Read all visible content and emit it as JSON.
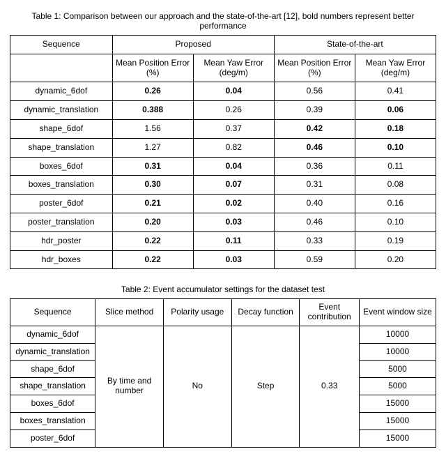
{
  "table1": {
    "caption": "Table 1: Comparison between our approach and the state-of-the-art [12], bold numbers represent better performance",
    "headers": {
      "sequence": "Sequence",
      "proposed": "Proposed",
      "sota": "State-of-the-art",
      "mpe": "Mean Position Error (%)",
      "mye": "Mean Yaw Error (deg/m)",
      "mpe2": "Mean Position Error (%)",
      "mye2": "Mean Yaw Error (deg/m)"
    },
    "rows": [
      {
        "seq": "dynamic_6dof",
        "p_pos": "0.26",
        "p_pos_b": true,
        "p_yaw": "0.04",
        "p_yaw_b": true,
        "s_pos": "0.56",
        "s_pos_b": false,
        "s_yaw": "0.41",
        "s_yaw_b": false
      },
      {
        "seq": "dynamic_translation",
        "p_pos": "0.388",
        "p_pos_b": true,
        "p_yaw": "0.26",
        "p_yaw_b": false,
        "s_pos": "0.39",
        "s_pos_b": false,
        "s_yaw": "0.06",
        "s_yaw_b": true
      },
      {
        "seq": "shape_6dof",
        "p_pos": "1.56",
        "p_pos_b": false,
        "p_yaw": "0.37",
        "p_yaw_b": false,
        "s_pos": "0.42",
        "s_pos_b": true,
        "s_yaw": "0.18",
        "s_yaw_b": true
      },
      {
        "seq": "shape_translation",
        "p_pos": "1.27",
        "p_pos_b": false,
        "p_yaw": "0.82",
        "p_yaw_b": false,
        "s_pos": "0.46",
        "s_pos_b": true,
        "s_yaw": "0.10",
        "s_yaw_b": true
      },
      {
        "seq": "boxes_6dof",
        "p_pos": "0.31",
        "p_pos_b": true,
        "p_yaw": "0.04",
        "p_yaw_b": true,
        "s_pos": "0.36",
        "s_pos_b": false,
        "s_yaw": "0.11",
        "s_yaw_b": false
      },
      {
        "seq": "boxes_translation",
        "p_pos": "0.30",
        "p_pos_b": true,
        "p_yaw": "0.07",
        "p_yaw_b": true,
        "s_pos": "0.31",
        "s_pos_b": false,
        "s_yaw": "0.08",
        "s_yaw_b": false
      },
      {
        "seq": "poster_6dof",
        "p_pos": "0.21",
        "p_pos_b": true,
        "p_yaw": "0.02",
        "p_yaw_b": true,
        "s_pos": "0.40",
        "s_pos_b": false,
        "s_yaw": "0.16",
        "s_yaw_b": false
      },
      {
        "seq": "poster_translation",
        "p_pos": "0.20",
        "p_pos_b": true,
        "p_yaw": "0.03",
        "p_yaw_b": true,
        "s_pos": "0.46",
        "s_pos_b": false,
        "s_yaw": "0.10",
        "s_yaw_b": false
      },
      {
        "seq": "hdr_poster",
        "p_pos": "0.22",
        "p_pos_b": true,
        "p_yaw": "0.11",
        "p_yaw_b": true,
        "s_pos": "0.33",
        "s_pos_b": false,
        "s_yaw": "0.19",
        "s_yaw_b": false
      },
      {
        "seq": "hdr_boxes",
        "p_pos": "0.22",
        "p_pos_b": true,
        "p_yaw": "0.03",
        "p_yaw_b": true,
        "s_pos": "0.59",
        "s_pos_b": false,
        "s_yaw": "0.20",
        "s_yaw_b": false
      }
    ]
  },
  "table2": {
    "caption": "Table 2: Event accumulator settings for the dataset test",
    "headers": {
      "sequence": "Sequence",
      "slice": "Slice method",
      "polarity": "Polarity usage",
      "decay": "Decay function",
      "contrib": "Event contribution",
      "window": "Event window size"
    },
    "merged": {
      "slice": "By time and number",
      "polarity": "No",
      "decay": "Step",
      "contrib": "0.33"
    },
    "rows": [
      {
        "seq": "dynamic_6dof",
        "window": "10000"
      },
      {
        "seq": "dynamic_translation",
        "window": "10000"
      },
      {
        "seq": "shape_6dof",
        "window": "5000"
      },
      {
        "seq": "shape_translation",
        "window": "5000"
      },
      {
        "seq": "boxes_6dof",
        "window": "15000"
      },
      {
        "seq": "boxes_translation",
        "window": "15000"
      },
      {
        "seq": "poster_6dof",
        "window": "15000"
      }
    ]
  }
}
